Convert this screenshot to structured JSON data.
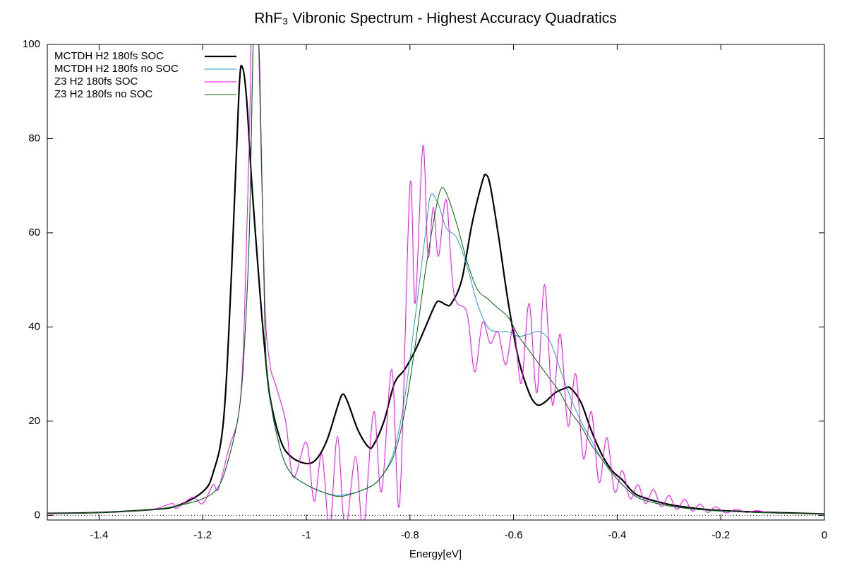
{
  "chart_data": {
    "type": "line",
    "title": "RhF₃ Vibronic Spectrum - Highest Accuracy Quadratics",
    "x_label": "Energy[eV]",
    "xlim": [
      -1.5,
      0
    ],
    "xticks": [
      -1.4,
      -1.2,
      -1,
      -0.8,
      -0.6,
      -0.4,
      -0.2,
      0
    ],
    "ylim": [
      -1,
      100
    ],
    "yticks": [
      0,
      20,
      40,
      60,
      80,
      100
    ],
    "legend": "top-left",
    "series": [
      {
        "name": "MCTDH H2 180fs SOC",
        "color": "#000000",
        "x": [
          -1.5,
          -1.4,
          -1.3,
          -1.25,
          -1.2,
          -1.18,
          -1.16,
          -1.145,
          -1.13,
          -1.123,
          -1.115,
          -1.105,
          -1.09,
          -1.08,
          -1.07,
          -1.05,
          -1.03,
          -1.0,
          -0.98,
          -0.96,
          -0.94,
          -0.93,
          -0.92,
          -0.9,
          -0.88,
          -0.87,
          -0.85,
          -0.83,
          -0.81,
          -0.79,
          -0.77,
          -0.75,
          -0.74,
          -0.73,
          -0.72,
          -0.7,
          -0.68,
          -0.66,
          -0.653,
          -0.645,
          -0.63,
          -0.61,
          -0.59,
          -0.57,
          -0.555,
          -0.54,
          -0.52,
          -0.5,
          -0.49,
          -0.47,
          -0.45,
          -0.43,
          -0.41,
          -0.39,
          -0.37,
          -0.35,
          -0.3,
          -0.25,
          -0.2,
          -0.1,
          0
        ],
        "values": [
          0.4,
          0.6,
          1.2,
          2,
          5,
          9,
          20,
          50,
          90,
          95,
          88,
          70,
          48,
          35,
          25,
          16,
          12.5,
          11,
          12,
          16,
          23,
          25.7,
          24,
          18,
          14.5,
          15,
          20,
          28,
          31,
          35,
          40,
          45,
          45.3,
          44.7,
          45,
          50,
          62,
          71,
          72.3,
          70,
          60,
          45,
          33,
          26,
          23.5,
          24,
          26,
          27,
          27,
          24,
          18,
          13,
          9.5,
          7.5,
          5,
          3.8,
          2.3,
          1.5,
          1,
          0.6,
          0.3
        ]
      },
      {
        "name": "MCTDH H2 180fs no SOC",
        "color": "#1f9fc8",
        "x": [
          -1.5,
          -1.4,
          -1.3,
          -1.25,
          -1.2,
          -1.17,
          -1.15,
          -1.13,
          -1.12,
          -1.11,
          -1.1,
          -1.09,
          -1.08,
          -1.07,
          -1.05,
          -1.03,
          -1.0,
          -0.97,
          -0.94,
          -0.92,
          -0.9,
          -0.87,
          -0.85,
          -0.83,
          -0.81,
          -0.79,
          -0.77,
          -0.76,
          -0.745,
          -0.73,
          -0.71,
          -0.69,
          -0.67,
          -0.65,
          -0.63,
          -0.61,
          -0.59,
          -0.57,
          -0.55,
          -0.53,
          -0.51,
          -0.49,
          -0.47,
          -0.45,
          -0.43,
          -0.41,
          -0.39,
          -0.37,
          -0.35,
          -0.3,
          -0.25,
          -0.2,
          -0.1,
          0
        ],
        "values": [
          0.4,
          0.6,
          1.2,
          2,
          3.5,
          6,
          12,
          22,
          35,
          60,
          110,
          95,
          40,
          25,
          14,
          9,
          6.5,
          5,
          4.2,
          4.5,
          5,
          6.5,
          9,
          14,
          25,
          42,
          60,
          68,
          66,
          61,
          59,
          53,
          45,
          40,
          39,
          39,
          38,
          38.5,
          39,
          37,
          31,
          25,
          20,
          16,
          12,
          9,
          6.5,
          4.5,
          3.3,
          2,
          1.3,
          0.9,
          0.5,
          0.3
        ]
      },
      {
        "name": "Z3 H2 180fs SOC",
        "color": "#ff00ff",
        "x": [
          -1.5,
          -1.4,
          -1.3,
          -1.26,
          -1.25,
          -1.22,
          -1.2,
          -1.18,
          -1.17,
          -1.15,
          -1.13,
          -1.12,
          -1.11,
          -1.1,
          -1.09,
          -1.08,
          -1.07,
          -1.06,
          -1.04,
          -1.025,
          -1.0,
          -0.985,
          -0.97,
          -0.955,
          -0.94,
          -0.925,
          -0.905,
          -0.89,
          -0.87,
          -0.855,
          -0.835,
          -0.82,
          -0.8,
          -0.79,
          -0.775,
          -0.765,
          -0.755,
          -0.745,
          -0.73,
          -0.715,
          -0.69,
          -0.675,
          -0.66,
          -0.645,
          -0.63,
          -0.615,
          -0.6,
          -0.585,
          -0.57,
          -0.555,
          -0.54,
          -0.525,
          -0.51,
          -0.495,
          -0.48,
          -0.465,
          -0.45,
          -0.435,
          -0.42,
          -0.405,
          -0.39,
          -0.375,
          -0.36,
          -0.345,
          -0.33,
          -0.315,
          -0.3,
          -0.285,
          -0.27,
          -0.255,
          -0.24,
          -0.225,
          -0.21,
          -0.19,
          -0.17,
          -0.15,
          -0.13,
          -0.1,
          0
        ],
        "values": [
          0.3,
          0.6,
          1.2,
          2.5,
          1.5,
          3.8,
          2.5,
          6.5,
          5.5,
          14,
          22,
          40,
          80,
          130,
          90,
          45,
          32,
          28,
          20,
          8,
          15.5,
          3,
          13,
          -3,
          16.8,
          -3,
          12.5,
          -3,
          22,
          5,
          31,
          2.5,
          70,
          45,
          78.5,
          55,
          65.5,
          55,
          67,
          47,
          43,
          30.5,
          41,
          36.5,
          39,
          32,
          40,
          28,
          45,
          26,
          49,
          23.5,
          38.5,
          19,
          30,
          12,
          22,
          7,
          16.5,
          5,
          9.5,
          3.5,
          6.5,
          2.5,
          5.5,
          1.8,
          4.2,
          1.2,
          3.4,
          0.9,
          2.4,
          0.6,
          1.8,
          0.5,
          1.3,
          0.6,
          1,
          0.5,
          0.3
        ]
      },
      {
        "name": "Z3 H2 180fs no SOC",
        "color": "#006400",
        "x": [
          -1.5,
          -1.4,
          -1.3,
          -1.25,
          -1.2,
          -1.17,
          -1.15,
          -1.13,
          -1.12,
          -1.11,
          -1.1,
          -1.09,
          -1.08,
          -1.07,
          -1.05,
          -1.03,
          -1.0,
          -0.97,
          -0.94,
          -0.92,
          -0.9,
          -0.87,
          -0.85,
          -0.83,
          -0.81,
          -0.79,
          -0.77,
          -0.75,
          -0.74,
          -0.73,
          -0.71,
          -0.69,
          -0.67,
          -0.65,
          -0.63,
          -0.61,
          -0.59,
          -0.57,
          -0.55,
          -0.53,
          -0.51,
          -0.49,
          -0.47,
          -0.45,
          -0.43,
          -0.41,
          -0.39,
          -0.37,
          -0.35,
          -0.3,
          -0.25,
          -0.2,
          -0.1,
          0
        ],
        "values": [
          0.4,
          0.6,
          1.2,
          2,
          3.5,
          6,
          12,
          22,
          35,
          60,
          110,
          95,
          40,
          25,
          14,
          9,
          6.5,
          5,
          4,
          4.3,
          5,
          6.5,
          9,
          13,
          22,
          36,
          52,
          65,
          69.3,
          68.5,
          62,
          54,
          48,
          46,
          44,
          42,
          38,
          35,
          32,
          29,
          26,
          22,
          19,
          15,
          12,
          9,
          6.5,
          4.5,
          3.3,
          2,
          1.3,
          0.9,
          0.5,
          0.3
        ]
      }
    ]
  }
}
